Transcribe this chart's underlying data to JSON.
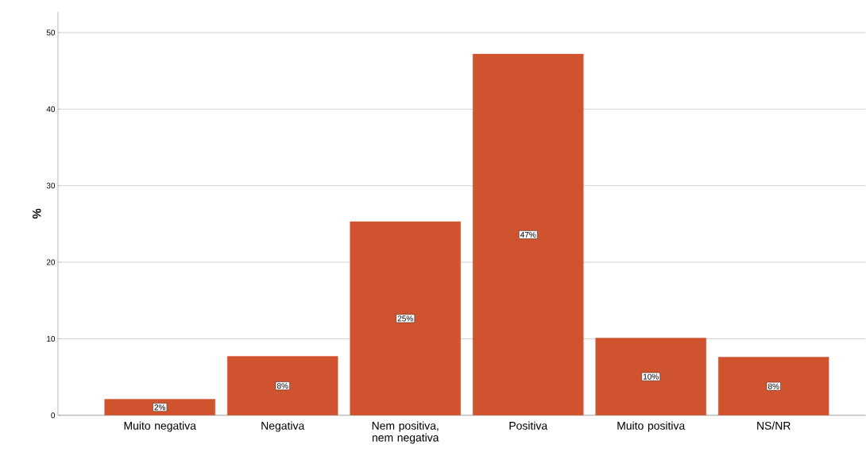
{
  "chart_data": {
    "type": "bar",
    "ylabel": "%",
    "categories": [
      "Muito negativa",
      "Negativa",
      "Nem positiva, nem negativa",
      "Positiva",
      "Muito positiva",
      "NS/NR"
    ],
    "values": [
      2.1,
      7.7,
      25.3,
      47.2,
      10.1,
      7.6
    ],
    "value_labels": [
      "2%",
      "8%",
      "25%",
      "47%",
      "10%",
      "8%"
    ],
    "color": "#d0532f",
    "ylim": [
      0,
      52.7
    ],
    "yticks": [
      0,
      10,
      20,
      30,
      40,
      50
    ],
    "grid": "y"
  }
}
